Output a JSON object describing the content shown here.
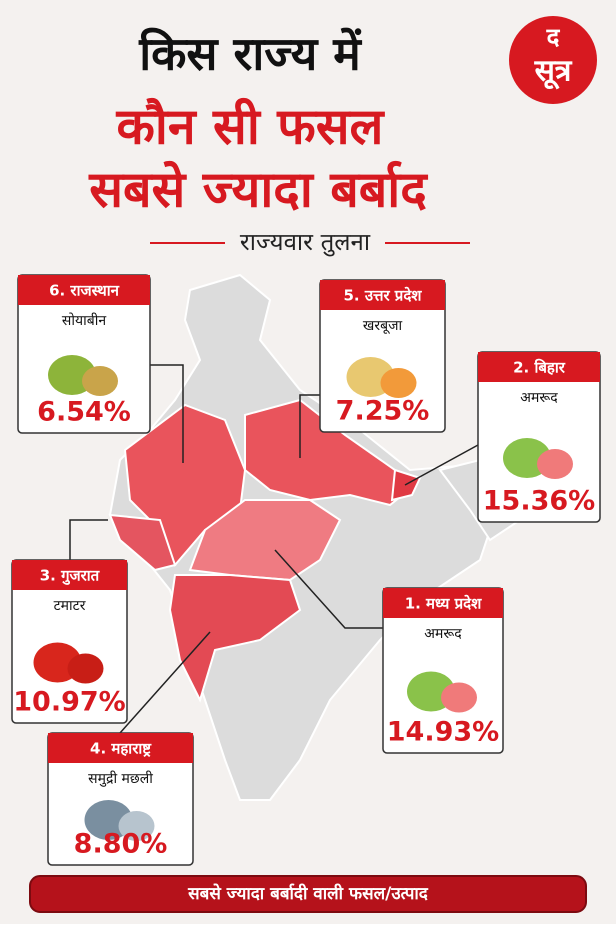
{
  "header": {
    "title_line1": "किस राज्य में",
    "title_line2": "कौन सी फसल",
    "title_line3": "सबसे ज्यादा बर्बाद",
    "subtitle": "राज्यवार तुलना"
  },
  "logo": {
    "top": "द",
    "bottom": "सूत्र"
  },
  "states": [
    {
      "label": "6. राजस्थान",
      "crop": "सोयाबीन",
      "share": "6.54%"
    },
    {
      "label": "5. उत्तर प्रदेश",
      "crop": "खरबूजा",
      "share": "7.25%"
    },
    {
      "label": "2. बिहार",
      "crop": "अमरूद",
      "share": "15.36%"
    },
    {
      "label": "3. गुजरात",
      "crop": "टमाटर",
      "share": "10.97%"
    },
    {
      "label": "1. मध्य प्रदेश",
      "crop": "अमरूद",
      "share": "14.93%"
    },
    {
      "label": "4. महाराष्ट्र",
      "crop": "समुद्री मछली",
      "share": "8.80%"
    }
  ],
  "footer": "सबसे ज्यादा बर्बादी वाली फसल/उत्पाद"
}
